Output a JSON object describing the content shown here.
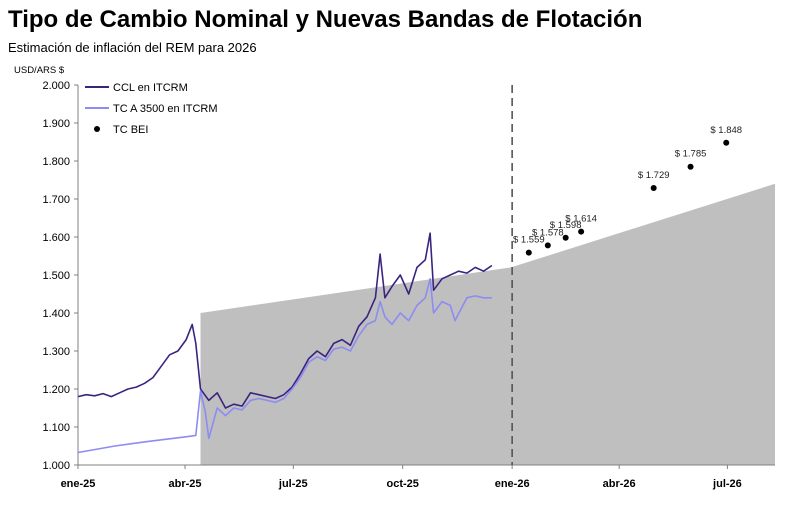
{
  "header": {
    "title": "Tipo de Cambio Nominal y Nuevas Bandas de Flotación",
    "subtitle": "Estimación de inflación del REM para 2026"
  },
  "chart_data": {
    "type": "line",
    "title": "Tipo de Cambio Nominal y Nuevas Bandas de Flotación",
    "subtitle": "Estimación de inflación del REM para 2026",
    "ylabel": "USD/ARS $",
    "ylim": [
      1000,
      2000
    ],
    "y_ticks": [
      "1.000",
      "1.100",
      "1.200",
      "1.300",
      "1.400",
      "1.500",
      "1.600",
      "1.700",
      "1.800",
      "1.900",
      "2.000"
    ],
    "x_ticks": [
      "ene-25",
      "abr-25",
      "jul-25",
      "oct-25",
      "ene-26",
      "abr-26",
      "jul-26"
    ],
    "xlim": [
      "2025-01-01",
      "2026-08-10"
    ],
    "vertical_marker": "2026-01-01",
    "legend_position": "top-left",
    "band": {
      "color": "#bfbfbf",
      "points": [
        {
          "x": "2025-04-14",
          "y": 1400
        },
        {
          "x": "2025-12-31",
          "y": 1520
        },
        {
          "x": "2026-08-10",
          "y": 1740
        }
      ]
    },
    "series": [
      {
        "name": "CCL en ITCRM",
        "color": "#3b2480",
        "points": [
          {
            "x": "2025-01-01",
            "y": 1180
          },
          {
            "x": "2025-01-08",
            "y": 1185
          },
          {
            "x": "2025-01-15",
            "y": 1182
          },
          {
            "x": "2025-01-22",
            "y": 1188
          },
          {
            "x": "2025-01-29",
            "y": 1180
          },
          {
            "x": "2025-02-05",
            "y": 1190
          },
          {
            "x": "2025-02-12",
            "y": 1200
          },
          {
            "x": "2025-02-19",
            "y": 1205
          },
          {
            "x": "2025-02-26",
            "y": 1215
          },
          {
            "x": "2025-03-05",
            "y": 1230
          },
          {
            "x": "2025-03-12",
            "y": 1260
          },
          {
            "x": "2025-03-19",
            "y": 1290
          },
          {
            "x": "2025-03-26",
            "y": 1300
          },
          {
            "x": "2025-04-02",
            "y": 1330
          },
          {
            "x": "2025-04-07",
            "y": 1370
          },
          {
            "x": "2025-04-10",
            "y": 1320
          },
          {
            "x": "2025-04-14",
            "y": 1200
          },
          {
            "x": "2025-04-21",
            "y": 1170
          },
          {
            "x": "2025-04-28",
            "y": 1190
          },
          {
            "x": "2025-05-05",
            "y": 1150
          },
          {
            "x": "2025-05-12",
            "y": 1160
          },
          {
            "x": "2025-05-19",
            "y": 1155
          },
          {
            "x": "2025-05-26",
            "y": 1190
          },
          {
            "x": "2025-06-02",
            "y": 1185
          },
          {
            "x": "2025-06-09",
            "y": 1180
          },
          {
            "x": "2025-06-16",
            "y": 1175
          },
          {
            "x": "2025-06-23",
            "y": 1185
          },
          {
            "x": "2025-06-30",
            "y": 1205
          },
          {
            "x": "2025-07-07",
            "y": 1240
          },
          {
            "x": "2025-07-14",
            "y": 1280
          },
          {
            "x": "2025-07-21",
            "y": 1300
          },
          {
            "x": "2025-07-28",
            "y": 1285
          },
          {
            "x": "2025-08-04",
            "y": 1320
          },
          {
            "x": "2025-08-11",
            "y": 1330
          },
          {
            "x": "2025-08-18",
            "y": 1315
          },
          {
            "x": "2025-08-25",
            "y": 1365
          },
          {
            "x": "2025-09-01",
            "y": 1390
          },
          {
            "x": "2025-09-08",
            "y": 1440
          },
          {
            "x": "2025-09-12",
            "y": 1555
          },
          {
            "x": "2025-09-16",
            "y": 1440
          },
          {
            "x": "2025-09-22",
            "y": 1470
          },
          {
            "x": "2025-09-29",
            "y": 1500
          },
          {
            "x": "2025-10-06",
            "y": 1450
          },
          {
            "x": "2025-10-13",
            "y": 1520
          },
          {
            "x": "2025-10-20",
            "y": 1540
          },
          {
            "x": "2025-10-24",
            "y": 1610
          },
          {
            "x": "2025-10-27",
            "y": 1460
          },
          {
            "x": "2025-11-03",
            "y": 1490
          },
          {
            "x": "2025-11-10",
            "y": 1500
          },
          {
            "x": "2025-11-17",
            "y": 1510
          },
          {
            "x": "2025-11-24",
            "y": 1505
          },
          {
            "x": "2025-12-01",
            "y": 1520
          },
          {
            "x": "2025-12-08",
            "y": 1510
          },
          {
            "x": "2025-12-15",
            "y": 1525
          }
        ]
      },
      {
        "name": "TC A 3500 en ITCRM",
        "color": "#8c8cf2",
        "points": [
          {
            "x": "2025-01-01",
            "y": 1033
          },
          {
            "x": "2025-02-01",
            "y": 1050
          },
          {
            "x": "2025-03-01",
            "y": 1062
          },
          {
            "x": "2025-04-01",
            "y": 1074
          },
          {
            "x": "2025-04-10",
            "y": 1078
          },
          {
            "x": "2025-04-14",
            "y": 1195
          },
          {
            "x": "2025-04-18",
            "y": 1140
          },
          {
            "x": "2025-04-21",
            "y": 1070
          },
          {
            "x": "2025-04-28",
            "y": 1150
          },
          {
            "x": "2025-05-05",
            "y": 1130
          },
          {
            "x": "2025-05-12",
            "y": 1150
          },
          {
            "x": "2025-05-19",
            "y": 1145
          },
          {
            "x": "2025-05-26",
            "y": 1170
          },
          {
            "x": "2025-06-02",
            "y": 1175
          },
          {
            "x": "2025-06-09",
            "y": 1170
          },
          {
            "x": "2025-06-16",
            "y": 1165
          },
          {
            "x": "2025-06-23",
            "y": 1175
          },
          {
            "x": "2025-06-30",
            "y": 1200
          },
          {
            "x": "2025-07-07",
            "y": 1230
          },
          {
            "x": "2025-07-14",
            "y": 1270
          },
          {
            "x": "2025-07-21",
            "y": 1285
          },
          {
            "x": "2025-07-28",
            "y": 1275
          },
          {
            "x": "2025-08-04",
            "y": 1305
          },
          {
            "x": "2025-08-11",
            "y": 1310
          },
          {
            "x": "2025-08-18",
            "y": 1300
          },
          {
            "x": "2025-08-25",
            "y": 1340
          },
          {
            "x": "2025-09-01",
            "y": 1370
          },
          {
            "x": "2025-09-08",
            "y": 1380
          },
          {
            "x": "2025-09-12",
            "y": 1430
          },
          {
            "x": "2025-09-16",
            "y": 1390
          },
          {
            "x": "2025-09-22",
            "y": 1370
          },
          {
            "x": "2025-09-29",
            "y": 1400
          },
          {
            "x": "2025-10-06",
            "y": 1380
          },
          {
            "x": "2025-10-13",
            "y": 1420
          },
          {
            "x": "2025-10-20",
            "y": 1440
          },
          {
            "x": "2025-10-24",
            "y": 1490
          },
          {
            "x": "2025-10-27",
            "y": 1400
          },
          {
            "x": "2025-11-03",
            "y": 1430
          },
          {
            "x": "2025-11-10",
            "y": 1420
          },
          {
            "x": "2025-11-14",
            "y": 1380
          },
          {
            "x": "2025-11-24",
            "y": 1440
          },
          {
            "x": "2025-12-01",
            "y": 1445
          },
          {
            "x": "2025-12-08",
            "y": 1440
          },
          {
            "x": "2025-12-15",
            "y": 1440
          }
        ]
      },
      {
        "name": "TC BEI",
        "color": "#000000",
        "type": "scatter",
        "points": [
          {
            "x": "2026-01-15",
            "y": 1559,
            "label": "$ 1.559"
          },
          {
            "x": "2026-01-31",
            "y": 1578,
            "label": "$ 1.578"
          },
          {
            "x": "2026-02-15",
            "y": 1598,
            "label": "$ 1.598"
          },
          {
            "x": "2026-02-28",
            "y": 1614,
            "label": "$ 1.614"
          },
          {
            "x": "2026-04-30",
            "y": 1729,
            "label": "$ 1.729"
          },
          {
            "x": "2026-05-31",
            "y": 1785,
            "label": "$ 1.785"
          },
          {
            "x": "2026-06-30",
            "y": 1848,
            "label": "$ 1.848"
          }
        ]
      }
    ]
  }
}
